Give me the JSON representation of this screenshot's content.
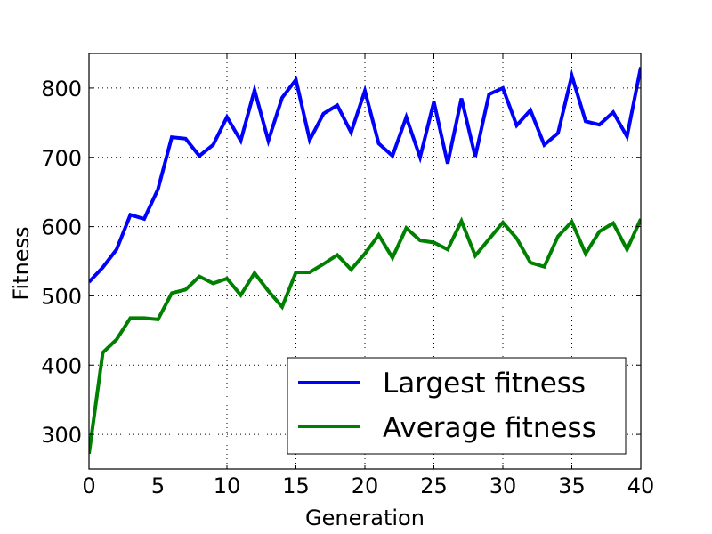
{
  "chart_data": {
    "type": "line",
    "xlabel": "Generation",
    "ylabel": "Fitness",
    "xlim": [
      0,
      40
    ],
    "ylim": [
      250,
      850
    ],
    "xticks": [
      "0",
      "5",
      "10",
      "15",
      "20",
      "25",
      "30",
      "35",
      "40"
    ],
    "yticks": [
      "300",
      "400",
      "500",
      "600",
      "700",
      "800"
    ],
    "grid": true,
    "legend_position": "lower-right",
    "x": [
      0,
      1,
      2,
      3,
      4,
      5,
      6,
      7,
      8,
      9,
      10,
      11,
      12,
      13,
      14,
      15,
      16,
      17,
      18,
      19,
      20,
      21,
      22,
      23,
      24,
      25,
      26,
      27,
      28,
      29,
      30,
      31,
      32,
      33,
      34,
      35,
      36,
      37,
      38,
      39,
      40
    ],
    "series": [
      {
        "name": "Largest fitness",
        "color": "#0000ff",
        "values": [
          520,
          541,
          567,
          617,
          611,
          654,
          729,
          727,
          702,
          718,
          758,
          724,
          797,
          724,
          786,
          812,
          725,
          763,
          775,
          736,
          796,
          720,
          702,
          758,
          700,
          780,
          691,
          785,
          701,
          791,
          800,
          746,
          768,
          718,
          735,
          818,
          752,
          747,
          765,
          730,
          830
        ]
      },
      {
        "name": "Average fitness",
        "color": "#008000",
        "values": [
          272,
          418,
          437,
          468,
          468,
          466,
          504,
          509,
          528,
          518,
          525,
          501,
          533,
          507,
          484,
          534,
          534,
          546,
          559,
          538,
          561,
          588,
          555,
          598,
          580,
          577,
          567,
          608,
          558,
          582,
          606,
          583,
          548,
          542,
          586,
          607,
          561,
          593,
          605,
          567,
          611
        ]
      }
    ]
  }
}
